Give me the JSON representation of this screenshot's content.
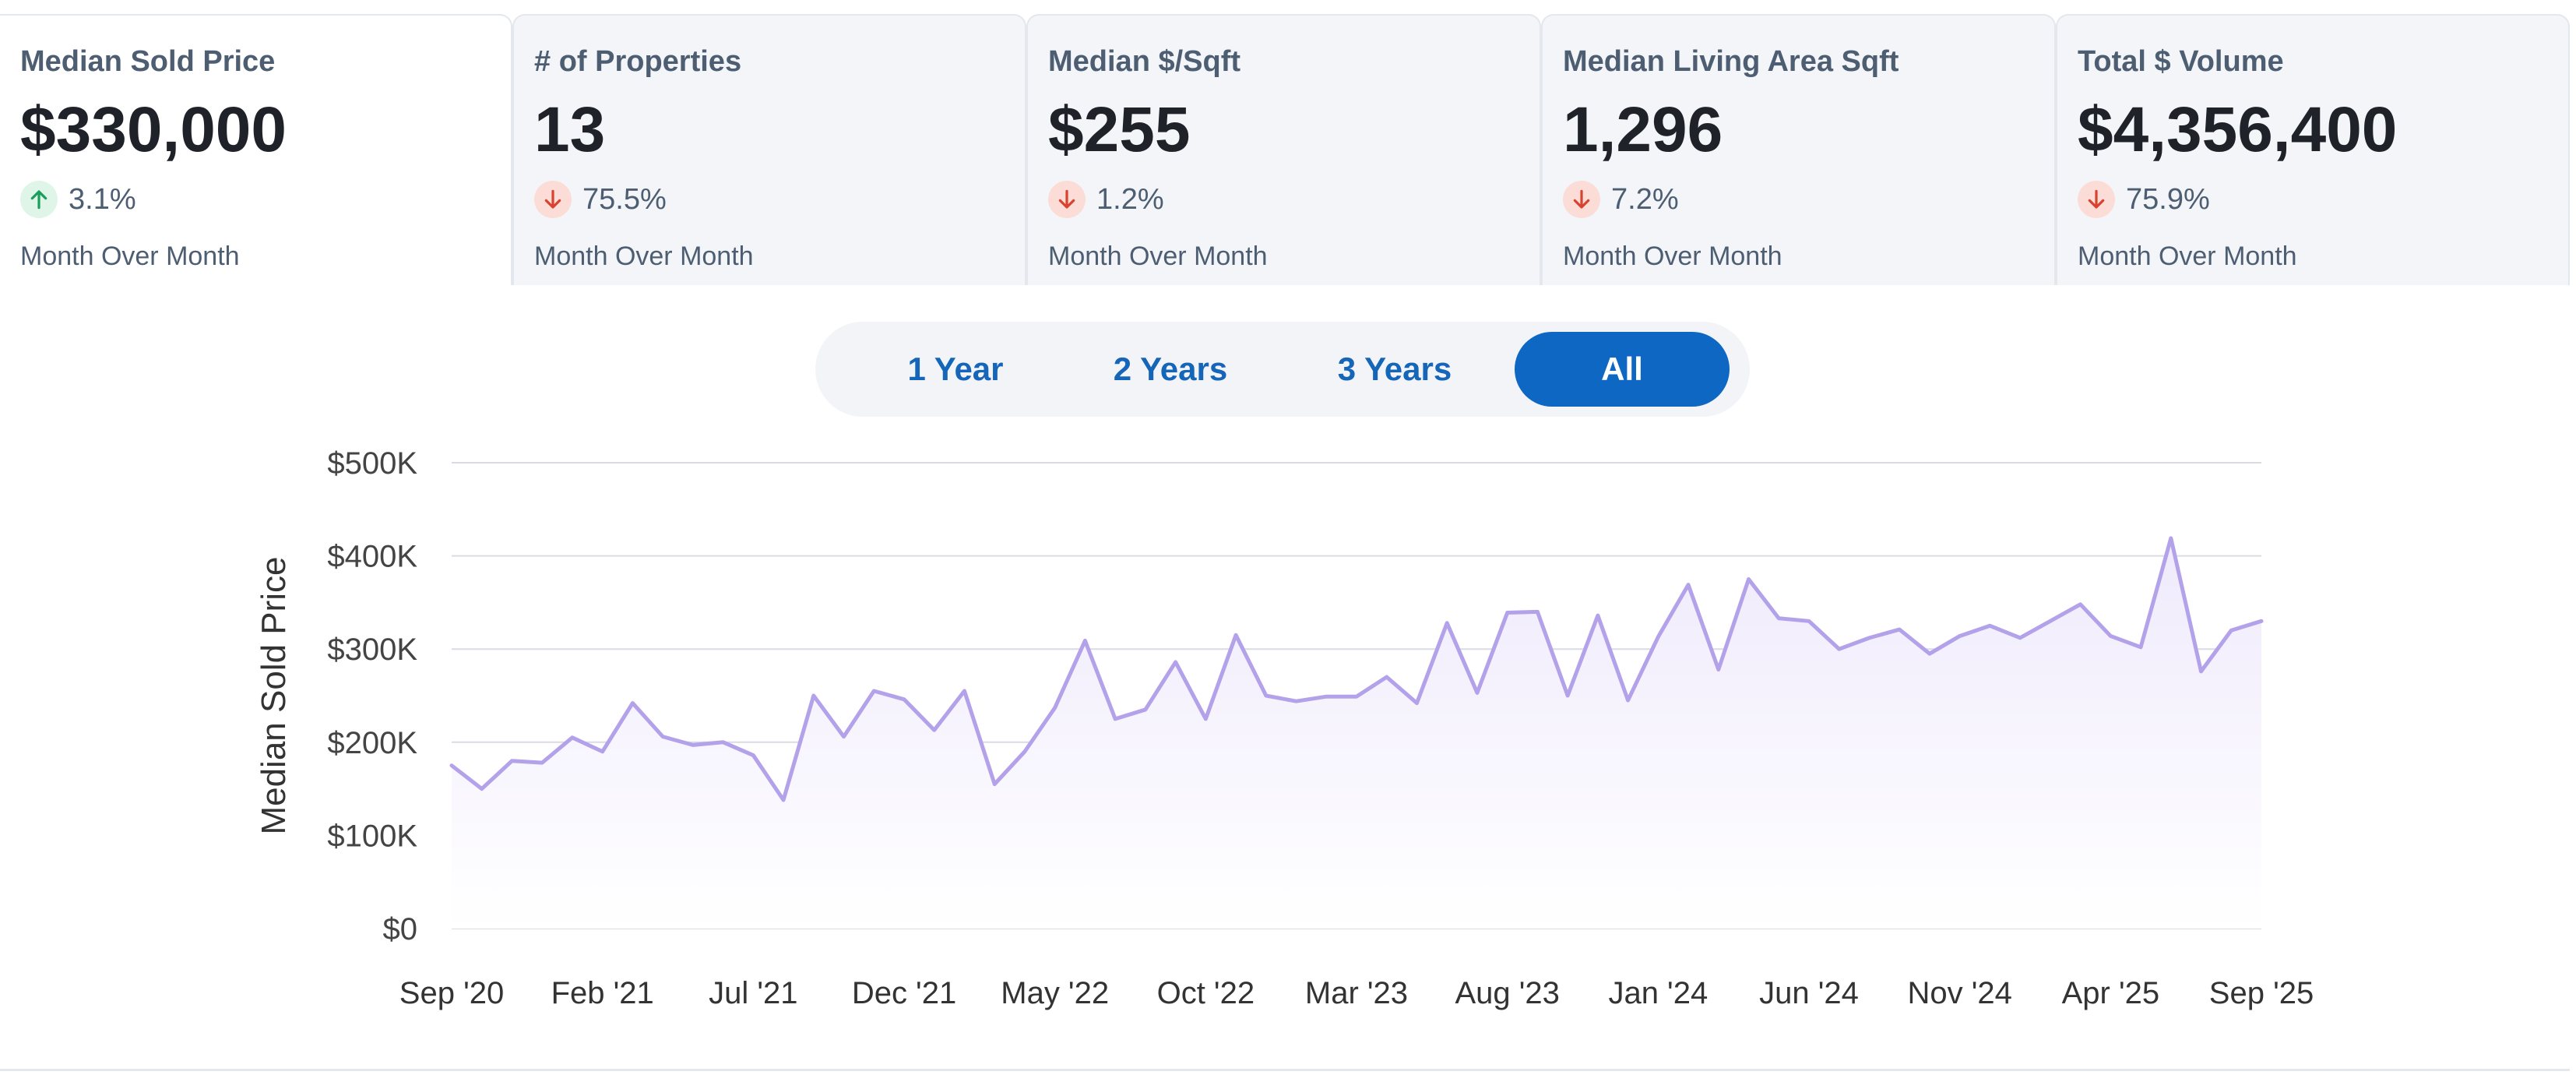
{
  "cards": [
    {
      "title": "Median Sold Price",
      "value": "$330,000",
      "direction": "up",
      "change": "3.1%",
      "period": "Month Over Month"
    },
    {
      "title": "# of Properties",
      "value": "13",
      "direction": "down",
      "change": "75.5%",
      "period": "Month Over Month"
    },
    {
      "title": "Median $/Sqft",
      "value": "$255",
      "direction": "down",
      "change": "1.2%",
      "period": "Month Over Month"
    },
    {
      "title": "Median Living Area Sqft",
      "value": "1,296",
      "direction": "down",
      "change": "7.2%",
      "period": "Month Over Month"
    },
    {
      "title": "Total $ Volume",
      "value": "$4,356,400",
      "direction": "down",
      "change": "75.9%",
      "period": "Month Over Month"
    }
  ],
  "range_options": [
    "1 Year",
    "2 Years",
    "3 Years",
    "All"
  ],
  "range_selected": "All",
  "colors": {
    "accent": "#0e67c3",
    "line": "#b3a1ea",
    "fill": "#efeafc",
    "up": "#1a9e5c",
    "down": "#d8432f"
  },
  "chart_data": {
    "type": "area",
    "ylabel": "Median Sold Price",
    "xlabel": "",
    "ylim": [
      0,
      500000
    ],
    "yticks": [
      0,
      100000,
      200000,
      300000,
      400000,
      500000
    ],
    "ytick_labels": [
      "$0",
      "$100K",
      "$200K",
      "$300K",
      "$400K",
      "$500K"
    ],
    "xtick_labels": [
      "Sep '20",
      "Feb '21",
      "Jul '21",
      "Dec '21",
      "May '22",
      "Oct '22",
      "Mar '23",
      "Aug '23",
      "Jan '24",
      "Jun '24",
      "Nov '24",
      "Apr '25",
      "Sep '25"
    ],
    "x_start": "2020-09",
    "x_end": "2025-09",
    "grid": true,
    "series": [
      {
        "values": [
          175000,
          150000,
          180000,
          178000,
          205000,
          190000,
          242000,
          206000,
          197000,
          200000,
          186000,
          138000,
          250000,
          206000,
          255000,
          246000,
          213000,
          255000,
          155000,
          190000,
          237000,
          309000,
          225000,
          235000,
          286000,
          225000,
          315000,
          250000,
          244000,
          249000,
          249000,
          270000,
          242000,
          328000,
          253000,
          339000,
          340000,
          250000,
          336000,
          245000,
          313000,
          369000,
          278000,
          375000,
          333000,
          330000,
          300000,
          312000,
          321000,
          295000,
          314000,
          325000,
          312000,
          330000,
          348000,
          314000,
          302000,
          419000,
          276000,
          320000,
          330000
        ]
      }
    ]
  }
}
